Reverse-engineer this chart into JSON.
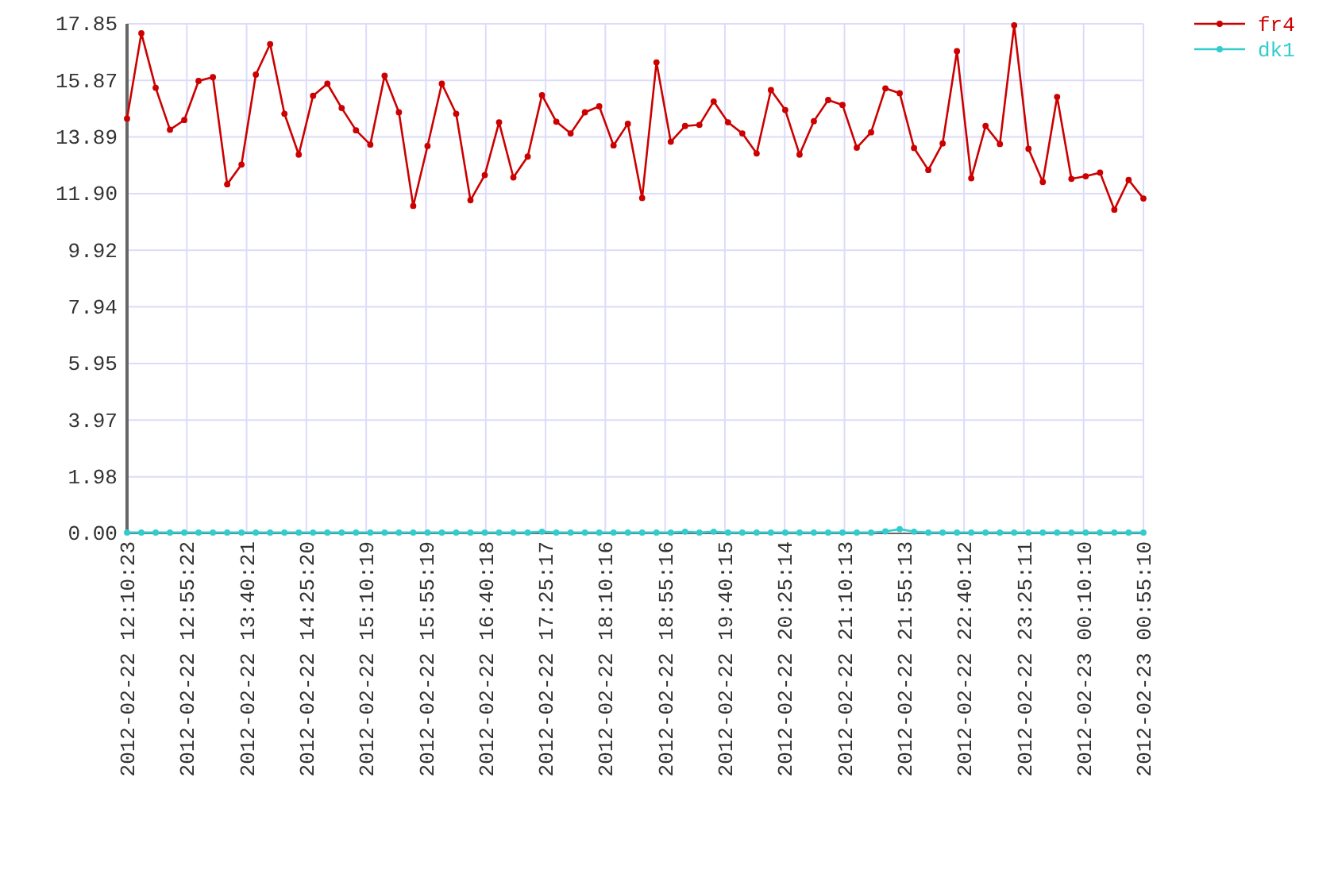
{
  "chart_data": {
    "type": "line",
    "x": [
      "2012-02-22T12:10:23",
      "2012-02-22T12:21:09",
      "2012-02-22T12:31:55",
      "2012-02-22T12:42:41",
      "2012-02-22T12:53:27",
      "2012-02-22T13:04:13",
      "2012-02-22T13:14:59",
      "2012-02-22T13:25:45",
      "2012-02-22T13:36:31",
      "2012-02-22T13:47:17",
      "2012-02-22T13:58:03",
      "2012-02-22T14:08:49",
      "2012-02-22T14:19:35",
      "2012-02-22T14:30:21",
      "2012-02-22T14:41:07",
      "2012-02-22T14:51:53",
      "2012-02-22T15:02:39",
      "2012-02-22T15:13:25",
      "2012-02-22T15:24:11",
      "2012-02-22T15:34:57",
      "2012-02-22T15:45:43",
      "2012-02-22T15:56:29",
      "2012-02-22T16:07:15",
      "2012-02-22T16:18:01",
      "2012-02-22T16:28:47",
      "2012-02-22T16:39:33",
      "2012-02-22T16:50:19",
      "2012-02-22T17:01:05",
      "2012-02-22T17:11:51",
      "2012-02-22T17:22:37",
      "2012-02-22T17:33:23",
      "2012-02-22T17:44:09",
      "2012-02-22T17:54:55",
      "2012-02-22T18:05:41",
      "2012-02-22T18:16:27",
      "2012-02-22T18:27:13",
      "2012-02-22T18:37:59",
      "2012-02-22T18:48:45",
      "2012-02-22T18:59:31",
      "2012-02-22T19:10:17",
      "2012-02-22T19:21:03",
      "2012-02-22T19:31:49",
      "2012-02-22T19:42:35",
      "2012-02-22T19:53:21",
      "2012-02-22T20:04:07",
      "2012-02-22T20:14:53",
      "2012-02-22T20:25:39",
      "2012-02-22T20:36:25",
      "2012-02-22T20:47:11",
      "2012-02-22T20:57:57",
      "2012-02-22T21:08:43",
      "2012-02-22T21:19:29",
      "2012-02-22T21:30:15",
      "2012-02-22T21:41:01",
      "2012-02-22T21:51:47",
      "2012-02-22T22:02:33",
      "2012-02-22T22:13:19",
      "2012-02-22T22:24:05",
      "2012-02-22T22:34:51",
      "2012-02-22T22:45:37",
      "2012-02-22T22:56:23",
      "2012-02-22T23:07:09",
      "2012-02-22T23:17:55",
      "2012-02-22T23:28:41",
      "2012-02-22T23:39:27",
      "2012-02-22T23:50:13",
      "2012-02-23T00:00:59",
      "2012-02-23T00:11:45",
      "2012-02-23T00:22:31",
      "2012-02-23T00:33:17",
      "2012-02-23T00:44:03",
      "2012-02-23T00:55:10"
    ],
    "series": [
      {
        "name": "fr4",
        "color": "#cc0000",
        "values": [
          14.53,
          17.52,
          15.61,
          14.14,
          14.48,
          15.85,
          15.98,
          12.23,
          12.92,
          16.07,
          17.14,
          14.7,
          13.27,
          15.33,
          15.75,
          14.9,
          14.12,
          13.62,
          16.03,
          14.75,
          11.47,
          13.57,
          15.75,
          14.7,
          11.67,
          12.55,
          14.4,
          12.47,
          13.2,
          15.35,
          14.42,
          14.01,
          14.75,
          14.96,
          13.59,
          14.35,
          11.75,
          16.5,
          13.72,
          14.27,
          14.31,
          15.13,
          14.4,
          14.01,
          13.31,
          15.53,
          14.83,
          13.27,
          14.44,
          15.18,
          15.01,
          13.51,
          14.05,
          15.59,
          15.42,
          13.5,
          12.73,
          13.66,
          16.89,
          12.44,
          14.27,
          13.64,
          17.8,
          13.47,
          12.31,
          15.29,
          12.42,
          12.51,
          12.64,
          11.34,
          12.38,
          11.73
        ]
      },
      {
        "name": "dk1",
        "color": "#33cccc",
        "values": [
          0.03,
          0.03,
          0.03,
          0.03,
          0.03,
          0.03,
          0.03,
          0.03,
          0.03,
          0.03,
          0.03,
          0.03,
          0.03,
          0.03,
          0.03,
          0.03,
          0.03,
          0.03,
          0.03,
          0.03,
          0.03,
          0.03,
          0.03,
          0.03,
          0.03,
          0.03,
          0.03,
          0.03,
          0.03,
          0.06,
          0.03,
          0.03,
          0.03,
          0.03,
          0.03,
          0.03,
          0.03,
          0.03,
          0.03,
          0.06,
          0.03,
          0.06,
          0.03,
          0.03,
          0.03,
          0.03,
          0.03,
          0.03,
          0.03,
          0.03,
          0.03,
          0.03,
          0.03,
          0.07,
          0.15,
          0.06,
          0.03,
          0.03,
          0.03,
          0.03,
          0.03,
          0.03,
          0.03,
          0.03,
          0.03,
          0.03,
          0.03,
          0.03,
          0.03,
          0.03,
          0.03,
          0.03
        ]
      }
    ],
    "xlim": [
      "2012-02-22T12:10:23",
      "2012-02-23T00:55:10"
    ],
    "xticks": [
      {
        "value": "2012-02-22T12:10:23",
        "label": "2012-02-22 12:10:23"
      },
      {
        "value": "2012-02-22T12:55:22",
        "label": "2012-02-22 12:55:22"
      },
      {
        "value": "2012-02-22T13:40:21",
        "label": "2012-02-22 13:40:21"
      },
      {
        "value": "2012-02-22T14:25:20",
        "label": "2012-02-22 14:25:20"
      },
      {
        "value": "2012-02-22T15:10:19",
        "label": "2012-02-22 15:10:19"
      },
      {
        "value": "2012-02-22T15:55:19",
        "label": "2012-02-22 15:55:19"
      },
      {
        "value": "2012-02-22T16:40:18",
        "label": "2012-02-22 16:40:18"
      },
      {
        "value": "2012-02-22T17:25:17",
        "label": "2012-02-22 17:25:17"
      },
      {
        "value": "2012-02-22T18:10:16",
        "label": "2012-02-22 18:10:16"
      },
      {
        "value": "2012-02-22T18:55:16",
        "label": "2012-02-22 18:55:16"
      },
      {
        "value": "2012-02-22T19:40:15",
        "label": "2012-02-22 19:40:15"
      },
      {
        "value": "2012-02-22T20:25:14",
        "label": "2012-02-22 20:25:14"
      },
      {
        "value": "2012-02-22T21:10:13",
        "label": "2012-02-22 21:10:13"
      },
      {
        "value": "2012-02-22T21:55:13",
        "label": "2012-02-22 21:55:13"
      },
      {
        "value": "2012-02-22T22:40:12",
        "label": "2012-02-22 22:40:12"
      },
      {
        "value": "2012-02-22T23:25:11",
        "label": "2012-02-22 23:25:11"
      },
      {
        "value": "2012-02-23T00:10:10",
        "label": "2012-02-23 00:10:10"
      },
      {
        "value": "2012-02-23T00:55:10",
        "label": "2012-02-23 00:55:10"
      }
    ],
    "ylim": [
      0,
      17.85
    ],
    "yticks": [
      {
        "value": 0,
        "label": "0.00"
      },
      1.98,
      3.97,
      5.95,
      7.94,
      9.92,
      {
        "value": 11.9,
        "label": "11.90"
      },
      13.89,
      15.87,
      17.85
    ],
    "grid": true,
    "legend": "top right",
    "marker": "circle",
    "line_style": "solid"
  }
}
